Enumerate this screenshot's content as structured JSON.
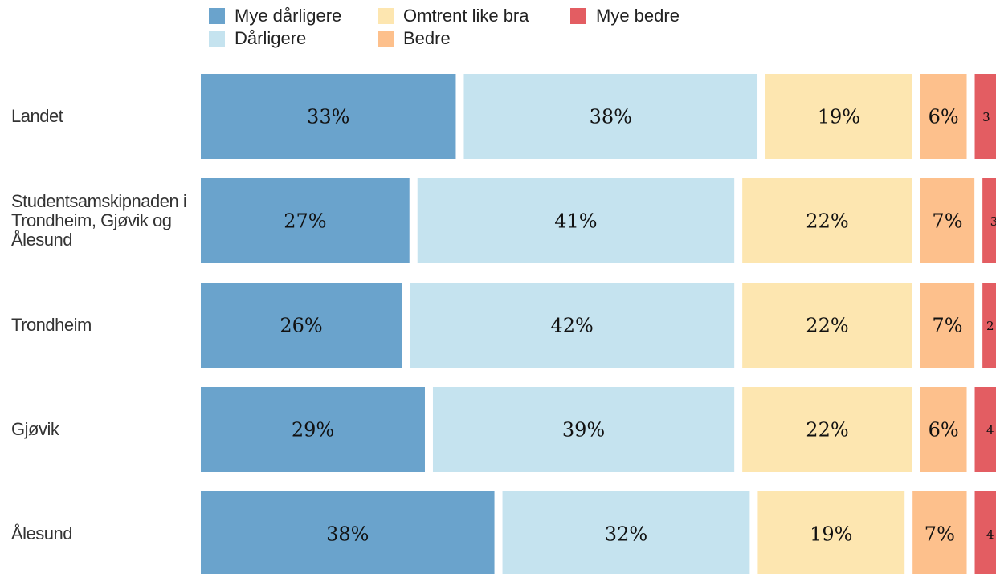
{
  "chart_data": {
    "type": "bar",
    "orientation": "horizontal",
    "stacked": true,
    "categories": [
      "Landet",
      "Studentsamskipnaden i Trondheim, Gjøvik og Ålesund",
      "Trondheim",
      "Gjøvik",
      "Ålesund"
    ],
    "series": [
      {
        "name": "Mye dårligere",
        "color": "#6aa3cc",
        "values": [
          33,
          27,
          26,
          29,
          38
        ],
        "value_labels": [
          "33%",
          "27%",
          "26%",
          "29%",
          "38%"
        ]
      },
      {
        "name": "Dårligere",
        "color": "#c5e3ef",
        "values": [
          38,
          41,
          42,
          39,
          32
        ],
        "value_labels": [
          "38%",
          "41%",
          "42%",
          "39%",
          "32%"
        ]
      },
      {
        "name": "Omtrent like bra",
        "color": "#fde6b0",
        "values": [
          19,
          22,
          22,
          22,
          19
        ],
        "value_labels": [
          "19%",
          "22%",
          "22%",
          "22%",
          "19%"
        ]
      },
      {
        "name": "Bedre",
        "color": "#fdc08c",
        "values": [
          6,
          7,
          7,
          6,
          7
        ],
        "value_labels": [
          "6%",
          "7%",
          "7%",
          "6%",
          "7%"
        ]
      },
      {
        "name": "Mye bedre",
        "color": "#e35d62",
        "values": [
          3,
          3,
          2,
          4,
          4
        ]
      }
    ],
    "legend": "top"
  }
}
